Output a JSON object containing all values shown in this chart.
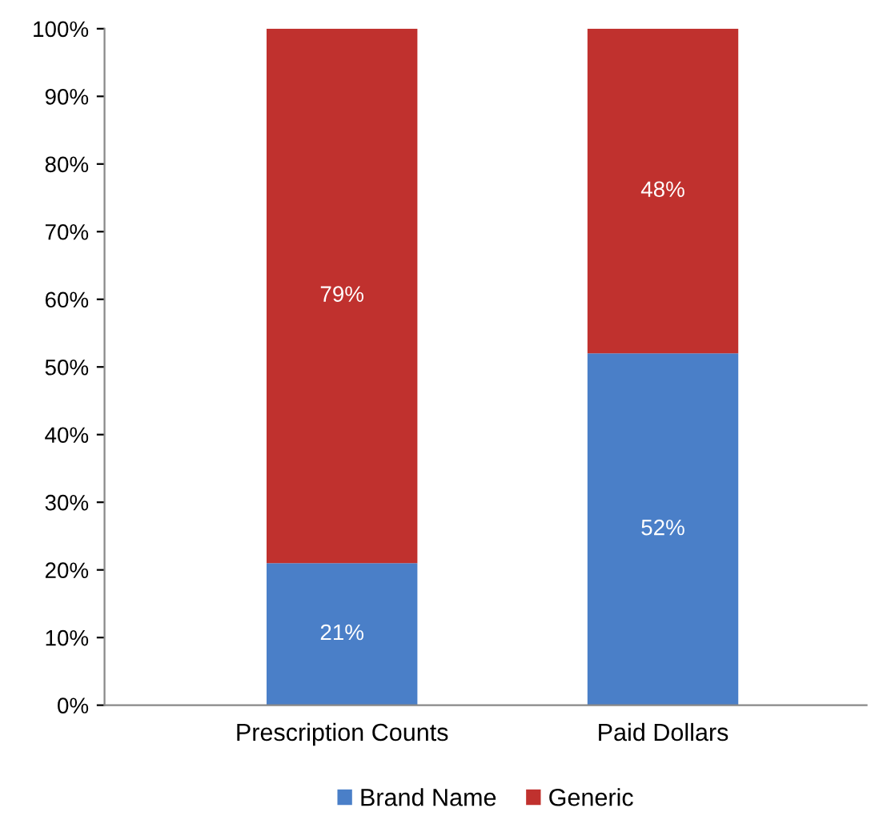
{
  "chart_data": {
    "type": "bar",
    "stacked": true,
    "categories": [
      "Prescription Counts",
      "Paid Dollars"
    ],
    "series": [
      {
        "name": "Brand Name",
        "color": "#4a7fc8",
        "values": [
          21,
          52
        ],
        "value_labels": [
          "21%",
          "52%"
        ]
      },
      {
        "name": "Generic",
        "color": "#c0312e",
        "values": [
          79,
          48
        ],
        "value_labels": [
          "79%",
          "48%"
        ]
      }
    ],
    "ylim": [
      0,
      100
    ],
    "yticks": [
      {
        "value": 0,
        "label": "0%"
      },
      {
        "value": 10,
        "label": "10%"
      },
      {
        "value": 20,
        "label": "20%"
      },
      {
        "value": 30,
        "label": "30%"
      },
      {
        "value": 40,
        "label": "40%"
      },
      {
        "value": 50,
        "label": "50%"
      },
      {
        "value": 60,
        "label": "60%"
      },
      {
        "value": 70,
        "label": "70%"
      },
      {
        "value": 80,
        "label": "80%"
      },
      {
        "value": 90,
        "label": "90%"
      },
      {
        "value": 100,
        "label": "100%"
      }
    ],
    "grid": false,
    "legend": "bottom"
  }
}
